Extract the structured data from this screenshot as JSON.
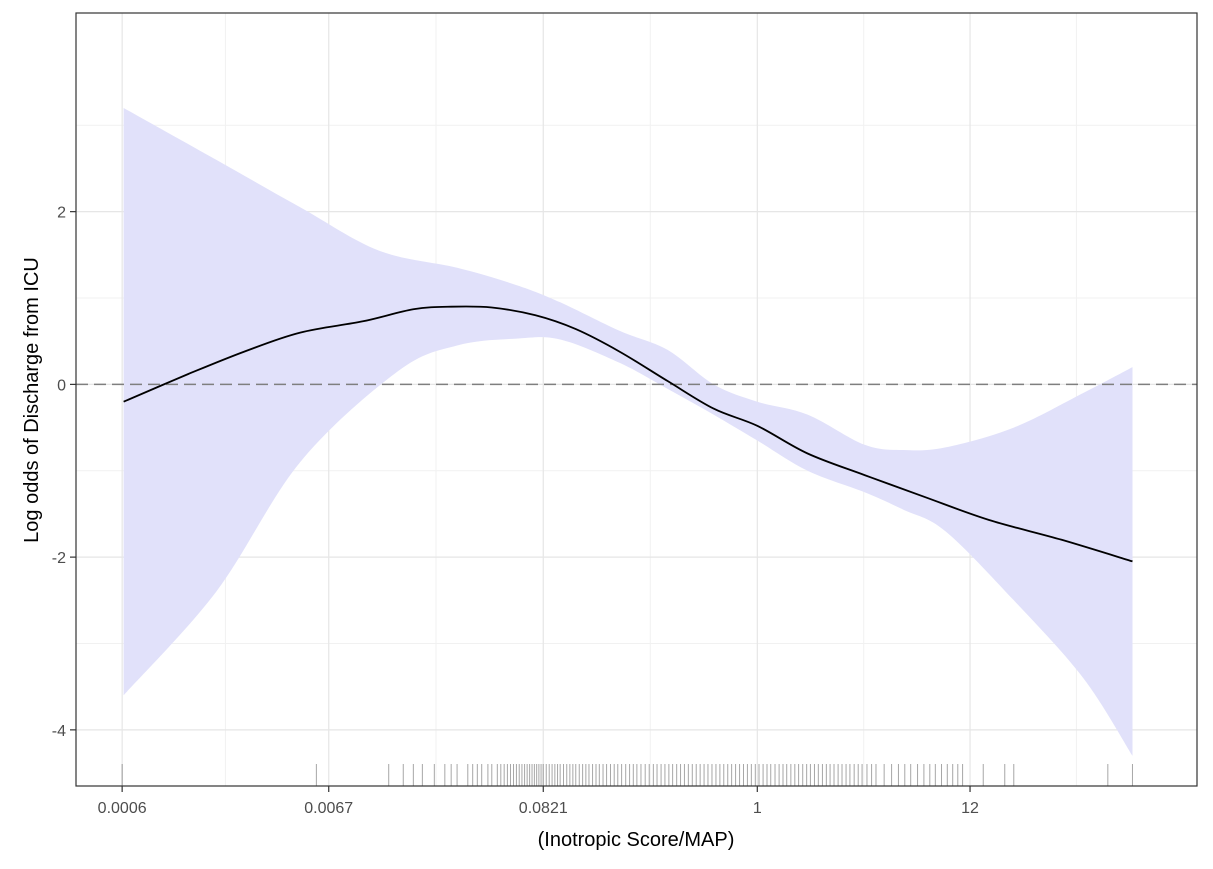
{
  "chart_data": {
    "type": "line",
    "title": "",
    "xlabel": "(Inotropic Score/MAP)",
    "ylabel": "Log odds of Discharge from ICU",
    "x_scale": "log",
    "xlim": [
      0.00035,
      170
    ],
    "ylim": [
      -4.65,
      4.3
    ],
    "x_ticks": [
      {
        "value": 0.0006,
        "label": "0.0006"
      },
      {
        "value": 0.0067,
        "label": "0.0067"
      },
      {
        "value": 0.0821,
        "label": "0.0821"
      },
      {
        "value": 1,
        "label": "1"
      },
      {
        "value": 12,
        "label": "12"
      }
    ],
    "y_ticks": [
      {
        "value": -4,
        "label": "-4"
      },
      {
        "value": -2,
        "label": "-2"
      },
      {
        "value": 0,
        "label": "0"
      },
      {
        "value": 2,
        "label": "2"
      }
    ],
    "grid": true,
    "reference_line": {
      "y": 0,
      "style": "dashed"
    },
    "series": [
      {
        "kind": "fit",
        "color": "#000000",
        "points": [
          [
            0.00061,
            -0.2
          ],
          [
            0.0013,
            0.12
          ],
          [
            0.0025,
            0.38
          ],
          [
            0.0048,
            0.6
          ],
          [
            0.01,
            0.73
          ],
          [
            0.018,
            0.87
          ],
          [
            0.028,
            0.9
          ],
          [
            0.045,
            0.89
          ],
          [
            0.075,
            0.8
          ],
          [
            0.12,
            0.64
          ],
          [
            0.2,
            0.38
          ],
          [
            0.35,
            0.04
          ],
          [
            0.6,
            -0.28
          ],
          [
            1.0,
            -0.48
          ],
          [
            1.8,
            -0.8
          ],
          [
            3.5,
            -1.05
          ],
          [
            7,
            -1.3
          ],
          [
            15,
            -1.57
          ],
          [
            35,
            -1.8
          ],
          [
            80,
            -2.05
          ]
        ]
      },
      {
        "kind": "confidence_band",
        "color": "#e1e1fa",
        "upper": [
          [
            0.00061,
            3.2
          ],
          [
            0.0018,
            2.6
          ],
          [
            0.0048,
            2.05
          ],
          [
            0.012,
            1.55
          ],
          [
            0.03,
            1.35
          ],
          [
            0.06,
            1.15
          ],
          [
            0.1,
            0.95
          ],
          [
            0.2,
            0.62
          ],
          [
            0.35,
            0.4
          ],
          [
            0.6,
            0.0
          ],
          [
            1.0,
            -0.2
          ],
          [
            1.8,
            -0.35
          ],
          [
            3.5,
            -0.7
          ],
          [
            5.5,
            -0.76
          ],
          [
            9,
            -0.73
          ],
          [
            20,
            -0.5
          ],
          [
            45,
            -0.1
          ],
          [
            80,
            0.2
          ]
        ],
        "lower": [
          [
            80,
            -4.3
          ],
          [
            45,
            -3.4
          ],
          [
            20,
            -2.5
          ],
          [
            9,
            -1.7
          ],
          [
            5.5,
            -1.45
          ],
          [
            3.5,
            -1.25
          ],
          [
            1.8,
            -1.0
          ],
          [
            1.0,
            -0.65
          ],
          [
            0.6,
            -0.35
          ],
          [
            0.35,
            -0.05
          ],
          [
            0.2,
            0.25
          ],
          [
            0.1,
            0.52
          ],
          [
            0.06,
            0.53
          ],
          [
            0.03,
            0.45
          ],
          [
            0.015,
            0.15
          ],
          [
            0.0048,
            -0.9
          ],
          [
            0.0018,
            -2.4
          ],
          [
            0.00061,
            -3.6
          ]
        ]
      }
    ],
    "rug": [
      0.0006,
      0.0058,
      0.0135,
      0.016,
      0.018,
      0.02,
      0.023,
      0.026,
      0.028,
      0.03,
      0.034,
      0.036,
      0.038,
      0.04,
      0.043,
      0.045,
      0.048,
      0.05,
      0.052,
      0.054,
      0.056,
      0.058,
      0.06,
      0.062,
      0.064,
      0.066,
      0.068,
      0.07,
      0.072,
      0.074,
      0.076,
      0.078,
      0.08,
      0.082,
      0.085,
      0.088,
      0.091,
      0.094,
      0.097,
      0.1,
      0.104,
      0.108,
      0.112,
      0.116,
      0.12,
      0.125,
      0.13,
      0.135,
      0.14,
      0.146,
      0.152,
      0.158,
      0.165,
      0.172,
      0.18,
      0.188,
      0.196,
      0.205,
      0.215,
      0.225,
      0.235,
      0.245,
      0.257,
      0.27,
      0.283,
      0.297,
      0.31,
      0.325,
      0.34,
      0.356,
      0.372,
      0.39,
      0.408,
      0.427,
      0.447,
      0.468,
      0.49,
      0.513,
      0.537,
      0.562,
      0.589,
      0.617,
      0.646,
      0.676,
      0.708,
      0.741,
      0.776,
      0.813,
      0.851,
      0.891,
      0.933,
      0.977,
      1.02,
      1.07,
      1.12,
      1.17,
      1.23,
      1.29,
      1.35,
      1.41,
      1.48,
      1.55,
      1.62,
      1.7,
      1.78,
      1.86,
      1.95,
      2.04,
      2.14,
      2.24,
      2.34,
      2.45,
      2.57,
      2.69,
      2.82,
      2.95,
      3.1,
      3.25,
      3.4,
      3.6,
      3.8,
      4.0,
      4.4,
      4.8,
      5.2,
      5.6,
      6.0,
      6.5,
      7.0,
      7.5,
      8.0,
      8.6,
      9.2,
      9.8,
      10.4,
      11.0,
      14.0,
      18.0,
      20.0,
      60.0,
      80.0
    ]
  }
}
